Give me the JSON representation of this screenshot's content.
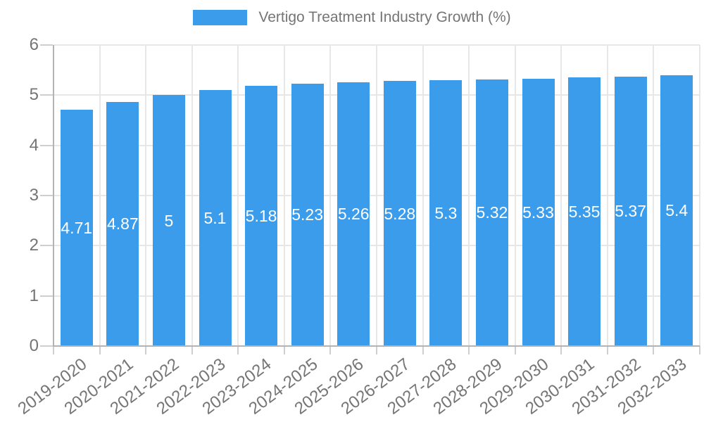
{
  "legend": {
    "label": "Vertigo Treatment Industry Growth (%)"
  },
  "colors": {
    "bar": "#3b9cec",
    "legend_text": "#757575",
    "tick_text": "#757575",
    "value_label_text": "#ffffff",
    "gridline": "#e7e7e7",
    "axis_line": "#b3b3b3",
    "tick_mark": "#cfcfcf",
    "background": "#ffffff"
  },
  "chart_data": {
    "type": "bar",
    "title": "Vertigo Treatment Industry Growth (%)",
    "legend_position": "top",
    "categories": [
      "2019-2020",
      "2020-2021",
      "2021-2022",
      "2022-2023",
      "2023-2024",
      "2024-2025",
      "2025-2026",
      "2026-2027",
      "2027-2028",
      "2028-2029",
      "2029-2030",
      "2030-2031",
      "2031-2032",
      "2032-2033"
    ],
    "values": [
      4.71,
      4.87,
      5,
      5.1,
      5.18,
      5.23,
      5.26,
      5.28,
      5.3,
      5.32,
      5.33,
      5.35,
      5.37,
      5.4
    ],
    "bar_value_labels": [
      "4.71",
      "4.87",
      "5",
      "5.1",
      "5.18",
      "5.23",
      "5.26",
      "5.28",
      "5.3",
      "5.32",
      "5.33",
      "5.35",
      "5.37",
      "5.4"
    ],
    "xlabel": "",
    "ylabel": "",
    "ylim": [
      0,
      6
    ],
    "yticks": [
      0,
      1,
      2,
      3,
      4,
      5,
      6
    ],
    "grid": true,
    "x_label_rotation_deg": -37
  }
}
